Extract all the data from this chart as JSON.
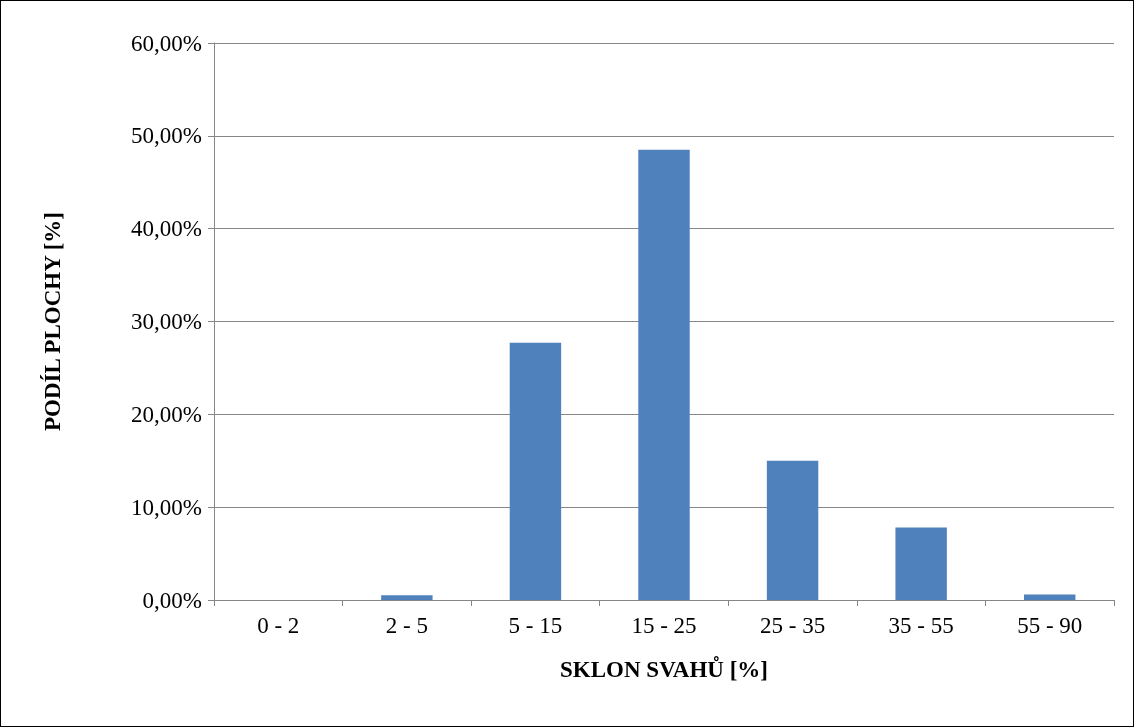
{
  "chart_data": {
    "type": "bar",
    "xlabel": "SKLON SVAHŮ [%]",
    "ylabel": "PODÍL PLOCHY [%]",
    "categories": [
      "0 - 2",
      "2 - 5",
      "5 - 15",
      "15 - 25",
      "25 - 35",
      "35 - 55",
      "55 - 90"
    ],
    "values": [
      0,
      0.5,
      27.7,
      48.5,
      15.0,
      7.8,
      0.6
    ],
    "color": "#4f81bd",
    "ylim": [
      0,
      60
    ],
    "yticks": [
      {
        "value": 0,
        "label": "0,00%"
      },
      {
        "value": 10,
        "label": "10,00%"
      },
      {
        "value": 20,
        "label": "20,00%"
      },
      {
        "value": 30,
        "label": "30,00%"
      },
      {
        "value": 40,
        "label": "40,00%"
      },
      {
        "value": 50,
        "label": "50,00%"
      },
      {
        "value": 60,
        "label": "60,00%"
      }
    ],
    "grid": "y"
  }
}
